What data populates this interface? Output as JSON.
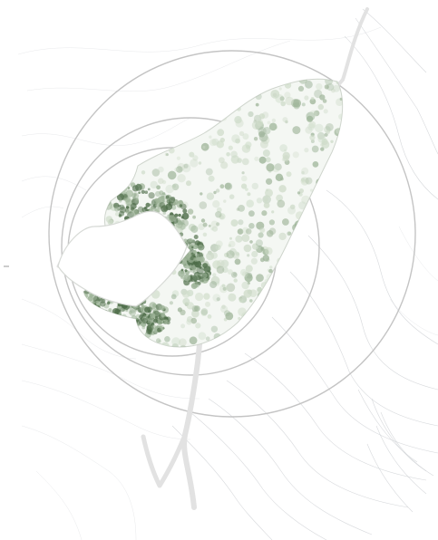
{
  "map": {
    "colors": {
      "background": "#ffffff",
      "contour": "#c9ccd0",
      "ring": "#c4c4c4",
      "path": "#e2e2e2",
      "foliage_light": "#cfdcca",
      "foliage_mid": "#9fb59a",
      "foliage_dark": "#4f6e4a"
    },
    "features": [
      "terrain-contours",
      "concentric-rings",
      "forest-canopy",
      "clearing",
      "trails"
    ]
  }
}
